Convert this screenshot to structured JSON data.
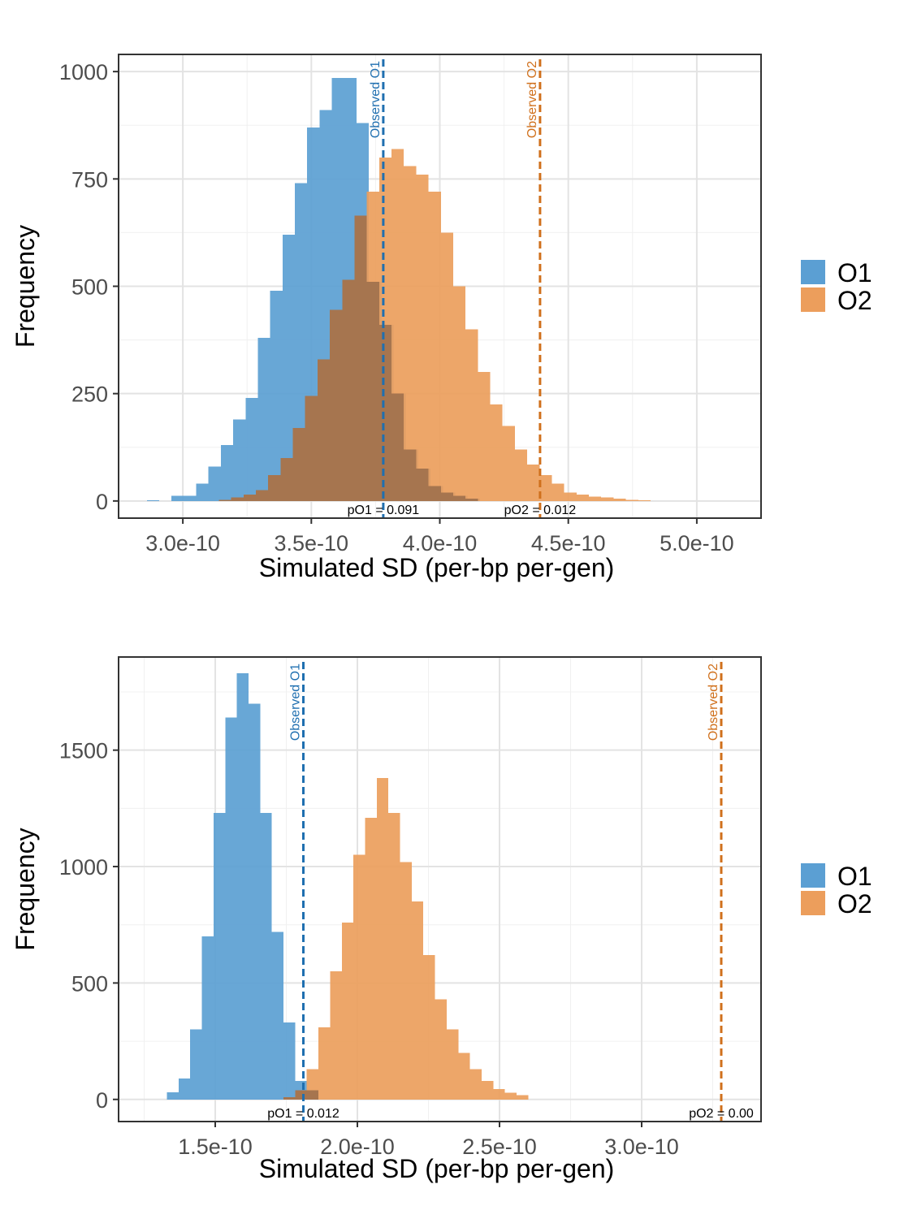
{
  "colors": {
    "O1": "#5b9fd3",
    "O2": "#ec9e5c",
    "O1_line": "#1f6fb0",
    "O2_line": "#d0701c"
  },
  "chart_data": [
    {
      "type": "histogram",
      "xlabel": "Simulated SD (per-bp per-gen)",
      "ylabel": "Frequency",
      "xlim": [
        2.75e-10,
        5.25e-10
      ],
      "ylim": [
        -40,
        1040
      ],
      "x_ticks": [
        3e-10,
        3.5e-10,
        4e-10,
        4.5e-10,
        5e-10
      ],
      "x_tick_labels": [
        "3.0e-10",
        "3.5e-10",
        "4.0e-10",
        "4.5e-10",
        "5.0e-10"
      ],
      "y_ticks": [
        0,
        250,
        500,
        750,
        1000
      ],
      "y_tick_labels": [
        "0",
        "250",
        "500",
        "750",
        "1000"
      ],
      "grid": true,
      "legend": {
        "position": "right",
        "entries": [
          "O1",
          "O2"
        ]
      },
      "series": [
        {
          "name": "O1",
          "bin_start": 2.86e-10,
          "bin_width": 4.8e-12,
          "counts": [
            2,
            0,
            12,
            12,
            40,
            80,
            130,
            190,
            240,
            380,
            490,
            620,
            740,
            870,
            910,
            985,
            985,
            880,
            510,
            410,
            250,
            120,
            75,
            35,
            20,
            12,
            5
          ]
        },
        {
          "name": "O2",
          "bin_start": 3.14e-10,
          "bin_width": 4.8e-12,
          "counts": [
            3,
            8,
            15,
            25,
            60,
            100,
            170,
            245,
            330,
            445,
            515,
            665,
            720,
            800,
            820,
            780,
            760,
            720,
            625,
            500,
            400,
            300,
            225,
            175,
            120,
            85,
            60,
            40,
            20,
            15,
            10,
            8,
            5,
            3,
            2
          ]
        }
      ],
      "vlines": [
        {
          "name": "O1",
          "label": "Observed O1",
          "x": 3.78e-10,
          "p_text": "pO1 = 0.091"
        },
        {
          "name": "O2",
          "label": "Observed O2",
          "x": 4.39e-10,
          "p_text": "pO2 = 0.012"
        }
      ]
    },
    {
      "type": "histogram",
      "xlabel": "Simulated SD (per-bp per-gen)",
      "ylabel": "Frequency",
      "xlim": [
        1.16e-10,
        3.42e-10
      ],
      "ylim": [
        -95,
        1900
      ],
      "x_ticks": [
        1.5e-10,
        2e-10,
        2.5e-10,
        3e-10
      ],
      "x_tick_labels": [
        "1.5e-10",
        "2.0e-10",
        "2.5e-10",
        "3.0e-10"
      ],
      "y_ticks": [
        0,
        500,
        1000,
        1500
      ],
      "y_tick_labels": [
        "0",
        "500",
        "1000",
        "1500"
      ],
      "grid": true,
      "legend": {
        "position": "right",
        "entries": [
          "O1",
          "O2"
        ]
      },
      "series": [
        {
          "name": "O1",
          "bin_start": 1.33e-10,
          "bin_width": 4.1e-12,
          "counts": [
            30,
            90,
            300,
            700,
            1230,
            1640,
            1830,
            1700,
            1230,
            720,
            330,
            80,
            40
          ]
        },
        {
          "name": "O2",
          "bin_start": 1.74e-10,
          "bin_width": 4.1e-12,
          "counts": [
            10,
            40,
            130,
            310,
            550,
            760,
            1050,
            1210,
            1380,
            1230,
            1020,
            850,
            620,
            430,
            300,
            200,
            130,
            80,
            45,
            28,
            18
          ]
        }
      ],
      "vlines": [
        {
          "name": "O1",
          "label": "Observed O1",
          "x": 1.81e-10,
          "p_text": "pO1 = 0.012"
        },
        {
          "name": "O2",
          "label": "Observed O2",
          "x": 3.28e-10,
          "p_text": "pO2 = 0.00"
        }
      ]
    }
  ]
}
